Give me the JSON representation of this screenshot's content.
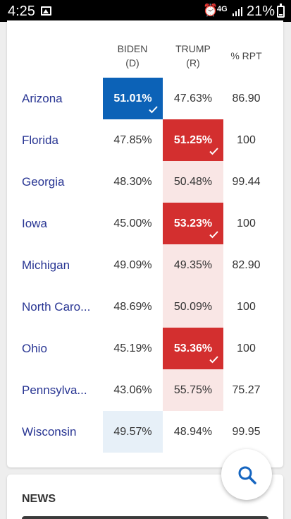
{
  "status_bar": {
    "time": "4:25",
    "network": "4G",
    "battery": "21%",
    "icons": [
      "gallery-icon",
      "alarm-icon",
      "signal-icon",
      "battery-icon"
    ]
  },
  "table": {
    "headers": {
      "biden_line1": "BIDEN",
      "biden_line2": "(D)",
      "trump_line1": "TRUMP",
      "trump_line2": "(R)",
      "rpt": "% RPT"
    },
    "rows": [
      {
        "state": "Arizona",
        "biden": "51.01%",
        "trump": "47.63%",
        "rpt": "86.90"
      },
      {
        "state": "Florida",
        "biden": "47.85%",
        "trump": "51.25%",
        "rpt": "100"
      },
      {
        "state": "Georgia",
        "biden": "48.30%",
        "trump": "50.48%",
        "rpt": "99.44"
      },
      {
        "state": "Iowa",
        "biden": "45.00%",
        "trump": "53.23%",
        "rpt": "100"
      },
      {
        "state": "Michigan",
        "biden": "49.09%",
        "trump": "49.35%",
        "rpt": "82.90"
      },
      {
        "state": "North Caro...",
        "biden": "48.69%",
        "trump": "50.09%",
        "rpt": "100"
      },
      {
        "state": "Ohio",
        "biden": "45.19%",
        "trump": "53.36%",
        "rpt": "100"
      },
      {
        "state": "Pennsylva...",
        "biden": "43.06%",
        "trump": "55.75%",
        "rpt": "75.27"
      },
      {
        "state": "Wisconsin",
        "biden": "49.57%",
        "trump": "48.94%",
        "rpt": "99.95"
      }
    ]
  },
  "colors": {
    "democrat_winner": "#0c62b7",
    "republican_winner": "#d32f2f",
    "democrat_lead": "#e7f0f8",
    "republican_lead": "#f9e6e5",
    "state_link": "#283593"
  },
  "news": {
    "heading": "NEWS"
  },
  "fab": {
    "icon": "search-icon"
  }
}
